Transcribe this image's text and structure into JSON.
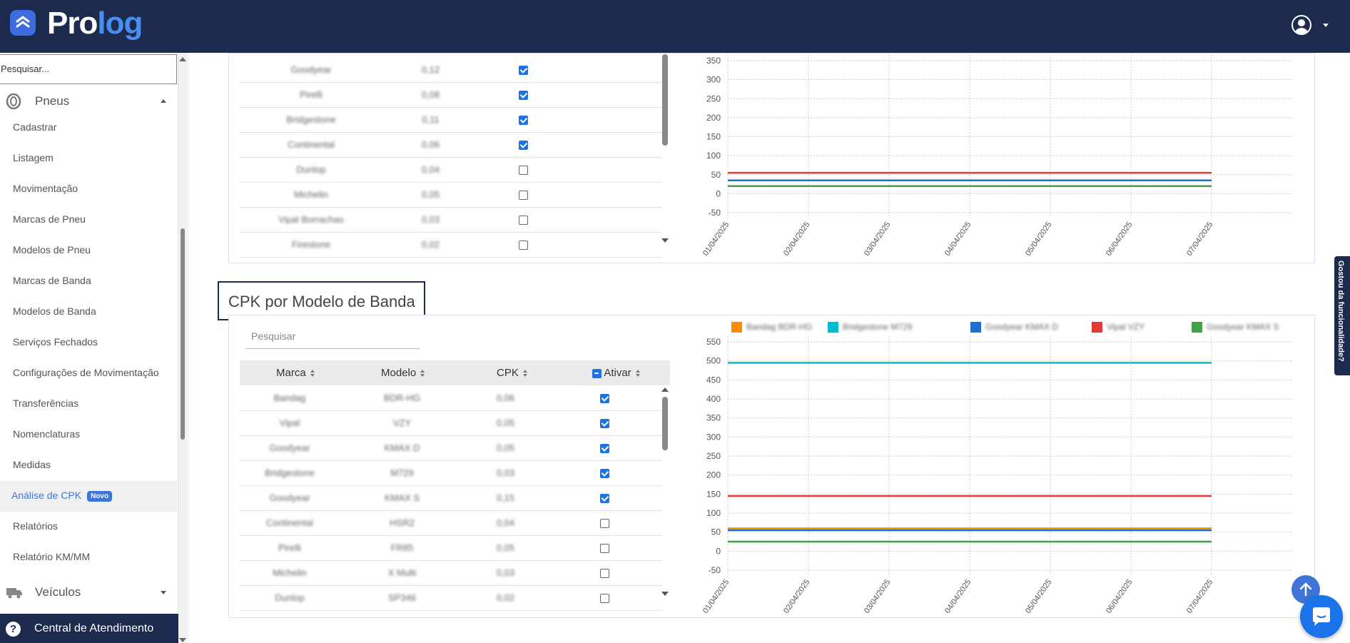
{
  "header": {
    "logo_part1": "Pro",
    "logo_part2": "log"
  },
  "sidebar": {
    "search_placeholder": "Pesquisar...",
    "group_pneus": "Pneus",
    "items": [
      "Cadastrar",
      "Listagem",
      "Movimentação",
      "Marcas de Pneu",
      "Modelos de Pneu",
      "Marcas de Banda",
      "Modelos de Banda",
      "Serviços Fechados",
      "Configurações de Movimentação",
      "Transferências",
      "Nomenclaturas",
      "Medidas",
      "Análise de CPK",
      "Relatórios",
      "Relatório KM/MM"
    ],
    "active_item": "Análise de CPK",
    "active_badge": "Novo",
    "group_veiculos": "Veículos",
    "help": "Central de Atendimento"
  },
  "top_table": {
    "rows": [
      {
        "marca": "Goodyear",
        "cpk": "0,12",
        "ativo": true
      },
      {
        "marca": "Pirelli",
        "cpk": "0,08",
        "ativo": true
      },
      {
        "marca": "Bridgestone",
        "cpk": "0,11",
        "ativo": true
      },
      {
        "marca": "Continental",
        "cpk": "0,06",
        "ativo": true
      },
      {
        "marca": "Dunlop",
        "cpk": "0,04",
        "ativo": false
      },
      {
        "marca": "Michelin",
        "cpk": "0,05",
        "ativo": false
      },
      {
        "marca": "Vipal Borrachas",
        "cpk": "0,03",
        "ativo": false
      },
      {
        "marca": "Firestone",
        "cpk": "0,02",
        "ativo": false
      }
    ]
  },
  "section": {
    "title": "CPK por Modelo de Banda",
    "filter_placeholder": "Pesquisar",
    "columns": {
      "marca": "Marca",
      "modelo": "Modelo",
      "cpk": "CPK",
      "ativar": "Ativar"
    },
    "rows": [
      {
        "marca": "Bandag",
        "modelo": "BDR-HG",
        "cpk": "0,06",
        "ativo": true
      },
      {
        "marca": "Vipal",
        "modelo": "VZY",
        "cpk": "0,05",
        "ativo": true
      },
      {
        "marca": "Goodyear",
        "modelo": "KMAX D",
        "cpk": "0,05",
        "ativo": true
      },
      {
        "marca": "Bridgestone",
        "modelo": "M729",
        "cpk": "0,03",
        "ativo": true
      },
      {
        "marca": "Goodyear",
        "modelo": "KMAX S",
        "cpk": "0,15",
        "ativo": true
      },
      {
        "marca": "Continental",
        "modelo": "HSR2",
        "cpk": "0,04",
        "ativo": false
      },
      {
        "marca": "Pirelli",
        "modelo": "FR85",
        "cpk": "0,05",
        "ativo": false
      },
      {
        "marca": "Michelin",
        "modelo": "X Multi",
        "cpk": "0,03",
        "ativo": false
      },
      {
        "marca": "Dunlop",
        "modelo": "SP346",
        "cpk": "0,02",
        "ativo": false
      }
    ]
  },
  "chart_data": [
    {
      "type": "line",
      "x": [
        "01/04/2025",
        "02/04/2025",
        "03/04/2025",
        "04/04/2025",
        "05/04/2025",
        "06/04/2025",
        "07/04/2025"
      ],
      "yticks": [
        350,
        300,
        250,
        200,
        150,
        100,
        50,
        0,
        -50
      ],
      "ylim": [
        -50,
        350
      ],
      "grid": true,
      "series": [
        {
          "color": "#e53935",
          "values": [
            55,
            55,
            55,
            55,
            55,
            55,
            55
          ]
        },
        {
          "color": "#1e6fd0",
          "values": [
            35,
            35,
            35,
            35,
            35,
            35,
            35
          ]
        },
        {
          "color": "#43a047",
          "values": [
            20,
            20,
            20,
            20,
            20,
            20,
            20
          ]
        }
      ]
    },
    {
      "type": "line",
      "x": [
        "01/04/2025",
        "02/04/2025",
        "03/04/2025",
        "04/04/2025",
        "05/04/2025",
        "06/04/2025",
        "07/04/2025"
      ],
      "yticks": [
        550,
        500,
        450,
        400,
        350,
        300,
        250,
        200,
        150,
        100,
        50,
        0,
        -50
      ],
      "ylim": [
        -50,
        550
      ],
      "grid": true,
      "legend": "top",
      "series": [
        {
          "name": "Bandag BDR-HG",
          "color": "#fb8c00",
          "values": [
            60,
            60,
            60,
            60,
            60,
            60,
            60
          ]
        },
        {
          "name": "Bridgestone M729",
          "color": "#00bcd4",
          "values": [
            495,
            495,
            495,
            495,
            495,
            495,
            495
          ]
        },
        {
          "name": "Goodyear KMAX D",
          "color": "#1e6fd0",
          "values": [
            55,
            55,
            55,
            55,
            55,
            55,
            55
          ]
        },
        {
          "name": "Vipal VZY",
          "color": "#e53935",
          "values": [
            145,
            145,
            145,
            145,
            145,
            145,
            145
          ]
        },
        {
          "name": "Goodyear KMAX S",
          "color": "#43a047",
          "values": [
            25,
            25,
            25,
            25,
            25,
            25,
            25
          ]
        }
      ]
    }
  ],
  "side_tab": "Gostou da funcionalidade?"
}
